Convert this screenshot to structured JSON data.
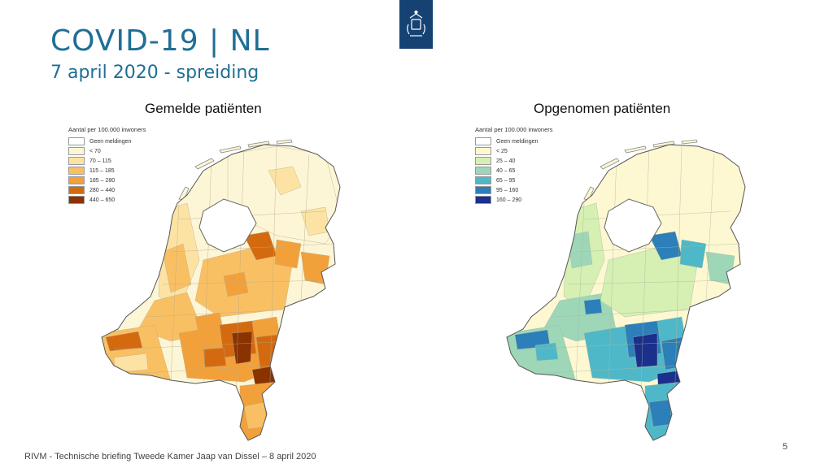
{
  "header": {
    "title": "COVID-19 | NL",
    "subtitle": "7 april 2020 - spreiding"
  },
  "maps": [
    {
      "title": "Gemelde patiënten",
      "legend_title": "Aantal per 100.000 inwoners",
      "legend": [
        {
          "label": "Geen meldingen",
          "color": "#ffffff"
        },
        {
          "label": "< 70",
          "color": "#fdf6d6"
        },
        {
          "label": "70 – 115",
          "color": "#fde3a3"
        },
        {
          "label": "115 – 185",
          "color": "#f9c063"
        },
        {
          "label": "185 – 280",
          "color": "#f2a13a"
        },
        {
          "label": "280 – 440",
          "color": "#d46a10"
        },
        {
          "label": "440 – 650",
          "color": "#8a3200"
        }
      ]
    },
    {
      "title": "Opgenomen patiënten",
      "legend_title": "Aantal per 100.000 inwoners",
      "legend": [
        {
          "label": "Geen meldingen",
          "color": "#ffffff"
        },
        {
          "label": "< 25",
          "color": "#fdf8d2"
        },
        {
          "label": "25 – 40",
          "color": "#d6efb3"
        },
        {
          "label": "40 – 65",
          "color": "#9dd7b8"
        },
        {
          "label": "65 – 95",
          "color": "#4fb8c8"
        },
        {
          "label": "95 – 160",
          "color": "#2c7fb8"
        },
        {
          "label": "160 – 290",
          "color": "#1b2f8c"
        }
      ]
    }
  ],
  "footer": {
    "source": "RIVM - Technische briefing Tweede Kamer Jaap van Dissel – 8 april 2020",
    "page_number": "5"
  }
}
